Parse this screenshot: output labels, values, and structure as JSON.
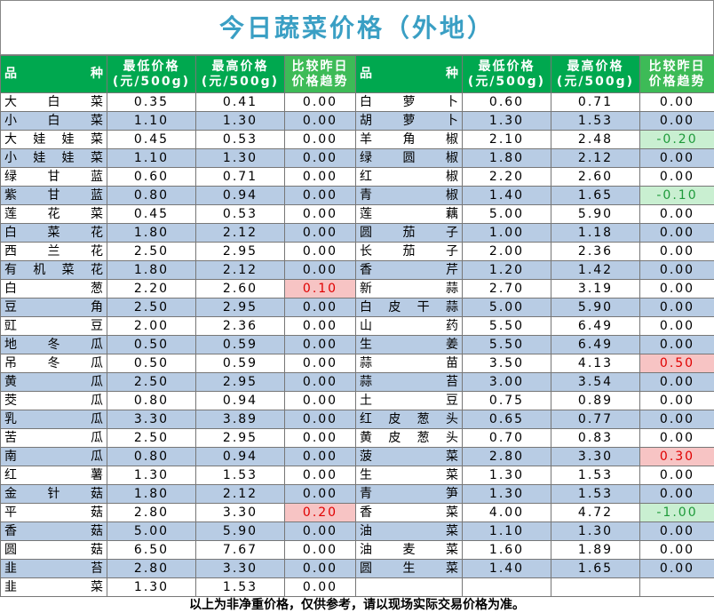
{
  "title": "今日蔬菜价格（外地）",
  "header": {
    "columns": [
      "品种",
      "最低价格\n(元/500g)",
      "最高价格\n(元/500g)",
      "比较昨日\n价格趋势"
    ]
  },
  "left_rows": [
    [
      "大白菜",
      "0.35",
      "0.41",
      "0.00"
    ],
    [
      "小白菜",
      "1.10",
      "1.30",
      "0.00"
    ],
    [
      "大娃娃菜",
      "0.45",
      "0.53",
      "0.00"
    ],
    [
      "小娃娃菜",
      "1.10",
      "1.30",
      "0.00"
    ],
    [
      "绿甘蓝",
      "0.60",
      "0.71",
      "0.00"
    ],
    [
      "紫甘蓝",
      "0.80",
      "0.94",
      "0.00"
    ],
    [
      "莲花菜",
      "0.45",
      "0.53",
      "0.00"
    ],
    [
      "白菜花",
      "1.80",
      "2.12",
      "0.00"
    ],
    [
      "西兰花",
      "2.50",
      "2.95",
      "0.00"
    ],
    [
      "有机菜花",
      "1.80",
      "2.12",
      "0.00"
    ],
    [
      "白葱",
      "2.20",
      "2.60",
      "0.10"
    ],
    [
      "豆角",
      "2.50",
      "2.95",
      "0.00"
    ],
    [
      "豇豆",
      "2.00",
      "2.36",
      "0.00"
    ],
    [
      "地冬瓜",
      "0.50",
      "0.59",
      "0.00"
    ],
    [
      "吊冬瓜",
      "0.50",
      "0.59",
      "0.00"
    ],
    [
      "黄瓜",
      "2.50",
      "2.95",
      "0.00"
    ],
    [
      "茭瓜",
      "0.80",
      "0.94",
      "0.00"
    ],
    [
      "乳瓜",
      "3.30",
      "3.89",
      "0.00"
    ],
    [
      "苦瓜",
      "2.50",
      "2.95",
      "0.00"
    ],
    [
      "南瓜",
      "0.80",
      "0.94",
      "0.00"
    ],
    [
      "红薯",
      "1.30",
      "1.53",
      "0.00"
    ],
    [
      "金针菇",
      "1.80",
      "2.12",
      "0.00"
    ],
    [
      "平菇",
      "2.80",
      "3.30",
      "0.20"
    ],
    [
      "香菇",
      "5.00",
      "5.90",
      "0.00"
    ],
    [
      "圆菇",
      "6.50",
      "7.67",
      "0.00"
    ],
    [
      "韭苔",
      "2.80",
      "3.30",
      "0.00"
    ],
    [
      "韭菜",
      "1.30",
      "1.53",
      "0.00"
    ]
  ],
  "right_rows": [
    [
      "白萝卜",
      "0.60",
      "0.71",
      "0.00"
    ],
    [
      "胡萝卜",
      "1.30",
      "1.53",
      "0.00"
    ],
    [
      "羊角椒",
      "2.10",
      "2.48",
      "-0.20"
    ],
    [
      "绿圆椒",
      "1.80",
      "2.12",
      "0.00"
    ],
    [
      "红椒",
      "2.20",
      "2.60",
      "0.00"
    ],
    [
      "青椒",
      "1.40",
      "1.65",
      "-0.10"
    ],
    [
      "莲藕",
      "5.00",
      "5.90",
      "0.00"
    ],
    [
      "圆茄子",
      "1.00",
      "1.18",
      "0.00"
    ],
    [
      "长茄子",
      "2.00",
      "2.36",
      "0.00"
    ],
    [
      "香芹",
      "1.20",
      "1.42",
      "0.00"
    ],
    [
      "新蒜",
      "2.70",
      "3.19",
      "0.00"
    ],
    [
      "白皮干蒜",
      "5.00",
      "5.90",
      "0.00"
    ],
    [
      "山药",
      "5.50",
      "6.49",
      "0.00"
    ],
    [
      "生姜",
      "5.50",
      "6.49",
      "0.00"
    ],
    [
      "蒜苗",
      "3.50",
      "4.13",
      "0.50"
    ],
    [
      "蒜苔",
      "3.00",
      "3.54",
      "0.00"
    ],
    [
      "土豆",
      "0.75",
      "0.89",
      "0.00"
    ],
    [
      "红皮葱头",
      "0.65",
      "0.77",
      "0.00"
    ],
    [
      "黄皮葱头",
      "0.70",
      "0.83",
      "0.00"
    ],
    [
      "菠菜",
      "2.80",
      "3.30",
      "0.30"
    ],
    [
      "生菜",
      "1.30",
      "1.53",
      "0.00"
    ],
    [
      "青笋",
      "1.30",
      "1.53",
      "0.00"
    ],
    [
      "香菜",
      "4.00",
      "4.72",
      "-1.00"
    ],
    [
      "油菜",
      "1.10",
      "1.30",
      "0.00"
    ],
    [
      "油麦菜",
      "1.60",
      "1.89",
      "0.00"
    ],
    [
      "圆生菜",
      "1.40",
      "1.65",
      "0.00"
    ]
  ],
  "footer": "以上为非净重价格，仅供参考，请以现场实际交易价格为准。"
}
